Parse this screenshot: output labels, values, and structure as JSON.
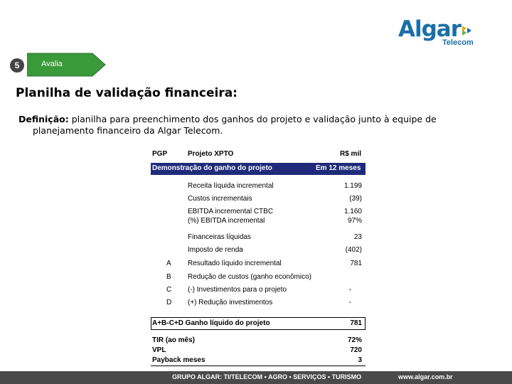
{
  "logo": {
    "word": "Algar",
    "sub": "Telecom"
  },
  "step": {
    "number": "5",
    "label": "Avalia"
  },
  "heading": "Planilha de validação financeira:",
  "definition": {
    "term": "Definição:",
    "text1": " planilha para preenchimento dos ganhos do projeto e validação junto à equipe de",
    "text2": "planejamento financeiro da Algar Telecom."
  },
  "sheet": {
    "col1_header": "PGP",
    "col2_header": "Projeto XPTO",
    "col3_header": "R$ mil",
    "bar_left": "Demonstração do ganho do projeto",
    "bar_right": "Em 12 meses",
    "rows": [
      {
        "key": "",
        "label": "Receita líquida incremental",
        "value": "1.199"
      },
      {
        "key": "",
        "label": "Custos incrementais",
        "value": "(39)"
      },
      {
        "key": "",
        "label": "EBITDA incremental CTBC",
        "value": "1.160"
      },
      {
        "key": "",
        "label": "(%) EBITDA incremental",
        "value": "97%"
      },
      {
        "key": "",
        "label": "Financeiras líquidas",
        "value": "23"
      },
      {
        "key": "",
        "label": "Imposto de renda",
        "value": "(402)"
      },
      {
        "key": "A",
        "label": "Resultado líquido incremental",
        "value": "781"
      },
      {
        "key": "B",
        "label": "Redução de custos (ganho econômico)",
        "value": ""
      },
      {
        "key": "C",
        "label": "(-) Investimentos para o projeto",
        "value": "-"
      },
      {
        "key": "D",
        "label": "(+) Redução investimentos",
        "value": "-"
      }
    ],
    "total_label": "A+B-C+D Ganho líquido do projeto",
    "total_value": "781",
    "metrics": [
      {
        "label": "TIR (ao mês)",
        "value": "72%"
      },
      {
        "label": "VPL",
        "value": "720"
      },
      {
        "label": "Payback meses",
        "value": "3"
      }
    ]
  },
  "footer": {
    "left": "GRUPO ALGAR: TI/TELECOM • AGRO • SERVIÇOS • TURISMO",
    "right": "www.algar.com.br"
  },
  "colors": {
    "brand_blue": "#1b6fa8",
    "step_green": "#3a9a3a",
    "bar_navy": "#1f2b7a",
    "footer_gray": "#4a4a4a"
  }
}
